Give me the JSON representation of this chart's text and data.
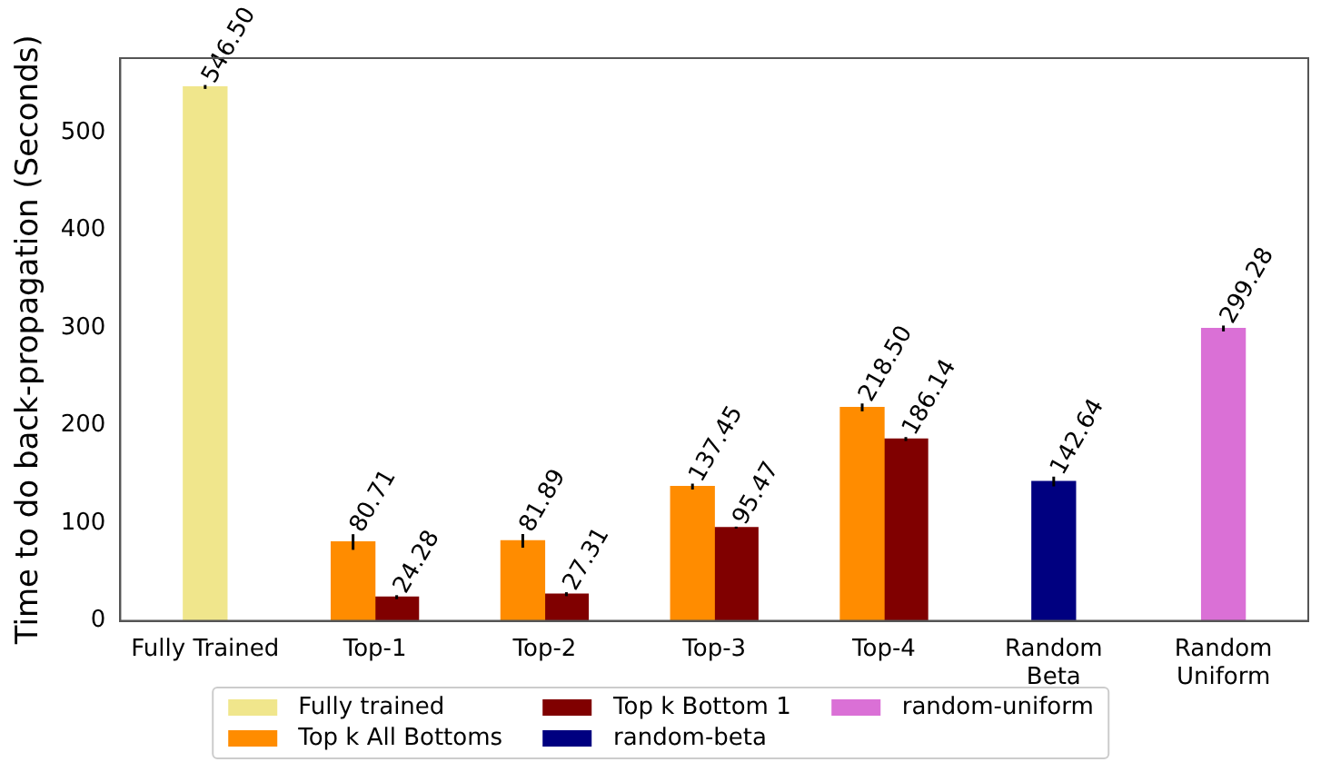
{
  "chart_data": {
    "type": "bar",
    "ylabel": "Time to do back-propagation (Seconds)",
    "categories": [
      "Fully Trained",
      "Top-1",
      "Top-2",
      "Top-3",
      "Top-4",
      "Random\nBeta",
      "Random\nUniform"
    ],
    "series": [
      {
        "name": "Fully trained",
        "color": "#f0e68c",
        "values": [
          546.5,
          null,
          null,
          null,
          null,
          null,
          null
        ],
        "errors": [
          2,
          null,
          null,
          null,
          null,
          null,
          null
        ],
        "value_labels": [
          "546.50",
          null,
          null,
          null,
          null,
          null,
          null
        ]
      },
      {
        "name": "Top k All Bottoms",
        "color": "#ff8c00",
        "values": [
          null,
          80.71,
          81.89,
          137.45,
          218.5,
          null,
          null
        ],
        "errors": [
          null,
          8,
          7,
          3,
          4,
          null,
          null
        ],
        "value_labels": [
          null,
          "80.71",
          "81.89",
          "137.45",
          "218.50",
          null,
          null
        ]
      },
      {
        "name": "Top k Bottom 1",
        "color": "#800000",
        "values": [
          null,
          24.28,
          27.31,
          95.47,
          186.14,
          null,
          null
        ],
        "errors": [
          null,
          2,
          2,
          1,
          2,
          null,
          null
        ],
        "value_labels": [
          null,
          "24.28",
          "27.31",
          "95.47",
          "186.14",
          null,
          null
        ]
      },
      {
        "name": "random-beta",
        "color": "#000080",
        "values": [
          null,
          null,
          null,
          null,
          null,
          142.64,
          null
        ],
        "errors": [
          null,
          null,
          null,
          null,
          null,
          5,
          null
        ],
        "value_labels": [
          null,
          null,
          null,
          null,
          null,
          "142.64",
          null
        ]
      },
      {
        "name": "random-uniform",
        "color": "#da70d6",
        "values": [
          null,
          null,
          null,
          null,
          null,
          null,
          299.28
        ],
        "errors": [
          null,
          null,
          null,
          null,
          null,
          null,
          3
        ],
        "value_labels": [
          null,
          null,
          null,
          null,
          null,
          null,
          "299.28"
        ]
      }
    ],
    "ylim": [
      0,
      576
    ],
    "yticks": [
      0,
      100,
      200,
      300,
      400,
      500
    ],
    "grid": false,
    "legend": "bottom"
  }
}
